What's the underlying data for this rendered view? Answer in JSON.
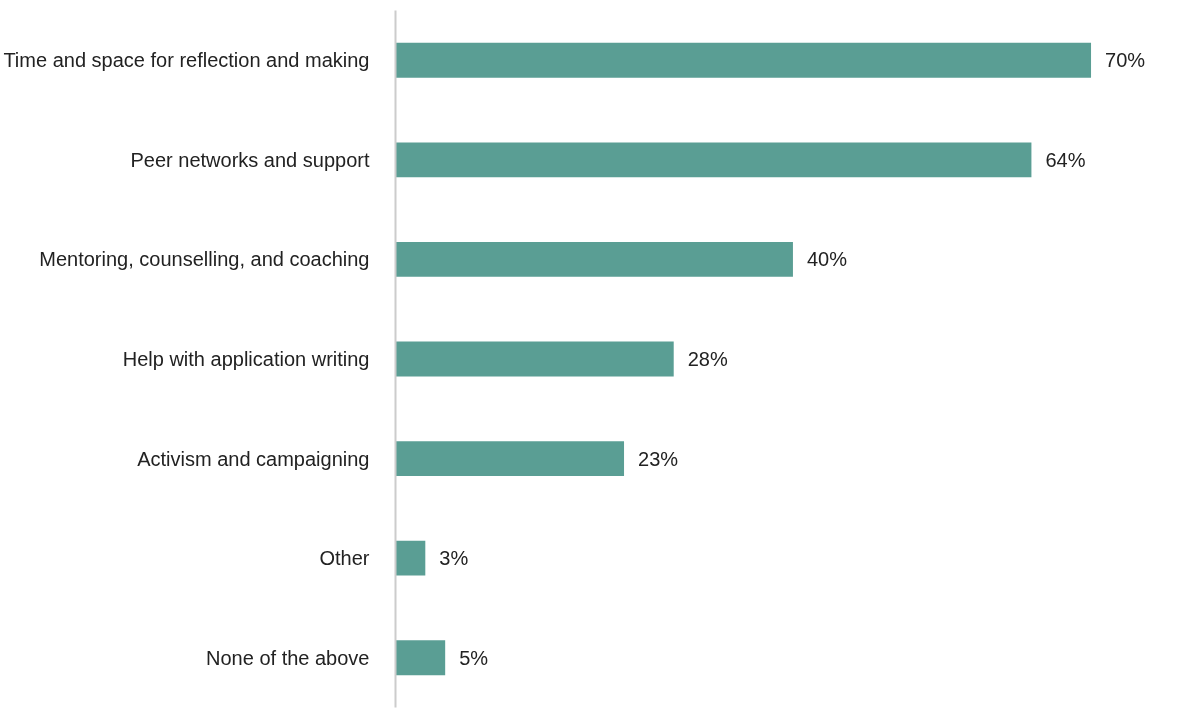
{
  "chart_data": {
    "type": "bar",
    "orientation": "horizontal",
    "categories": [
      "Time and space for reflection and making",
      "Peer networks and support",
      "Mentoring, counselling, and coaching",
      "Help with application writing",
      "Activism and campaigning",
      "Other",
      "None of the above"
    ],
    "values": [
      70,
      64,
      40,
      28,
      23,
      3,
      5
    ],
    "value_labels": [
      "70%",
      "64%",
      "40%",
      "28%",
      "23%",
      "3%",
      "5%"
    ],
    "color": "#5a9e94",
    "grid": false
  }
}
